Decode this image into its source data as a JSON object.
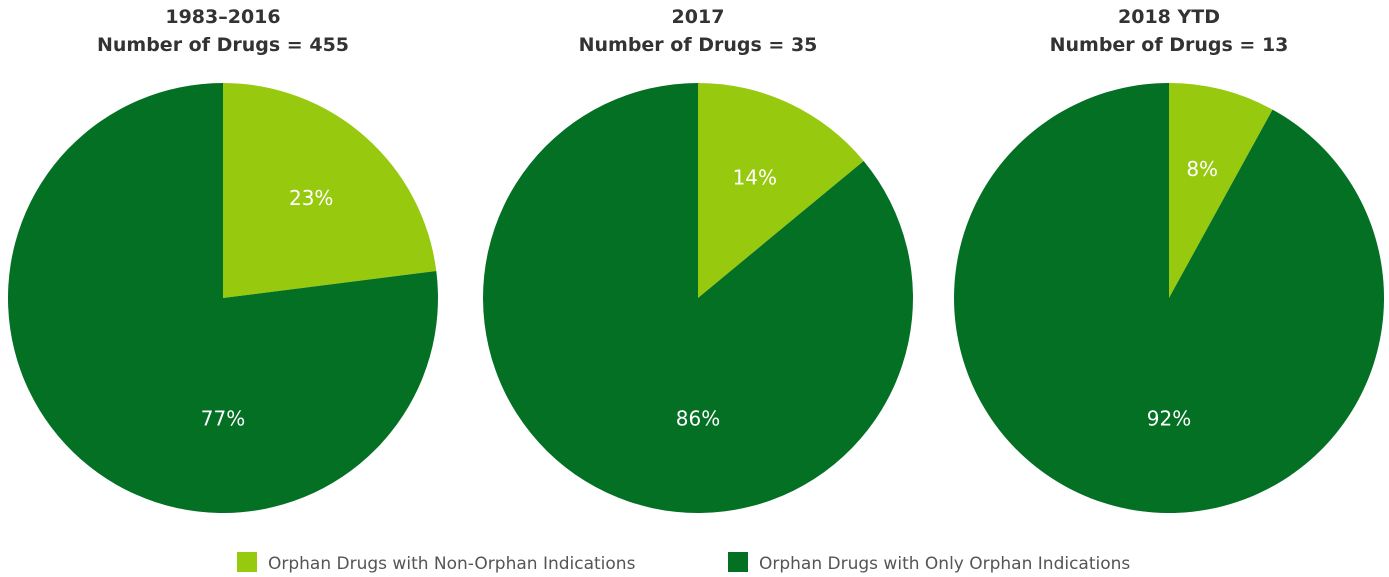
{
  "chart_data": [
    {
      "type": "pie",
      "title": "1983–2016",
      "subtitle": "Number of Drugs = 455",
      "slices": [
        {
          "name": "Orphan Drugs with Non-Orphan Indications",
          "value": 23,
          "label": "23%",
          "color": "#97c90f"
        },
        {
          "name": "Orphan Drugs with Only Orphan Indications",
          "value": 77,
          "label": "77%",
          "color": "#037024"
        }
      ]
    },
    {
      "type": "pie",
      "title": "2017",
      "subtitle": "Number of Drugs = 35",
      "slices": [
        {
          "name": "Orphan Drugs with Non-Orphan Indications",
          "value": 14,
          "label": "14%",
          "color": "#97c90f"
        },
        {
          "name": "Orphan Drugs with Only Orphan Indications",
          "value": 86,
          "label": "86%",
          "color": "#037024"
        }
      ]
    },
    {
      "type": "pie",
      "title": "2018 YTD",
      "subtitle": "Number of Drugs = 13",
      "slices": [
        {
          "name": "Orphan Drugs with Non-Orphan Indications",
          "value": 8,
          "label": "8%",
          "color": "#97c90f"
        },
        {
          "name": "Orphan Drugs with Only Orphan Indications",
          "value": 92,
          "label": "92%",
          "color": "#037024"
        }
      ]
    }
  ],
  "legend": {
    "position": "bottom-center",
    "items": [
      {
        "label": "Orphan Drugs with Non-Orphan Indications",
        "color": "#97c90f"
      },
      {
        "label": "Orphan Drugs with Only Orphan Indications",
        "color": "#037024"
      }
    ]
  }
}
